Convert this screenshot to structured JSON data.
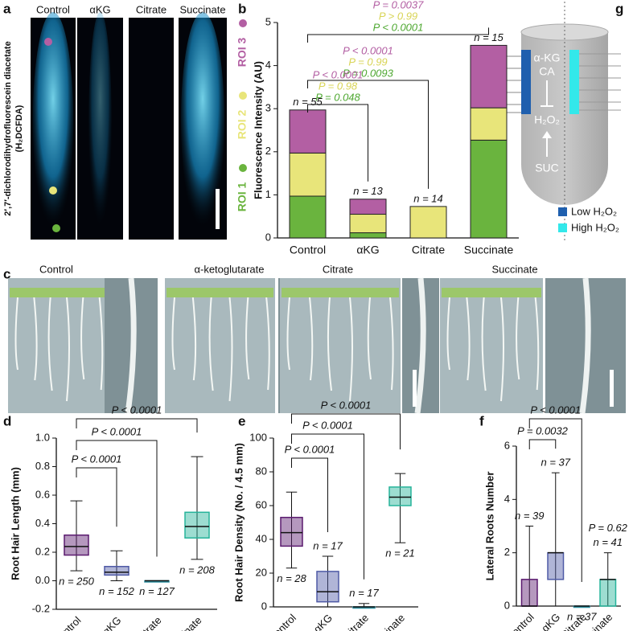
{
  "panel_letters": [
    "a",
    "b",
    "g",
    "c",
    "d",
    "e",
    "f"
  ],
  "panel_a": {
    "labels": [
      "Control",
      "αKG",
      "Citrate",
      "Succinate"
    ],
    "ylabel": "2′,7′-dichlorodihydrofluorescein diacetate",
    "ylabel2": "(H₂DCFDA)"
  },
  "panel_c": {
    "labels": [
      "Control",
      "α-ketoglutarate",
      "Citrate",
      "Succinate"
    ]
  },
  "panel_g": {
    "texts": [
      "α-KG",
      "CA",
      "H₂O₂",
      "SUC"
    ],
    "legend": [
      {
        "label": "Low H₂O₂",
        "color": "#1f5fae"
      },
      {
        "label": "High H₂O₂",
        "color": "#33e8ea"
      }
    ]
  },
  "chart_data": [
    {
      "type": "stacked_bar",
      "ylabel": "Fluorescence Intensity (AU)",
      "categories": [
        "Control",
        "αKG",
        "Citrate",
        "Succinate"
      ],
      "series": [
        {
          "name": "ROI 1",
          "color": "#6ab43e",
          "values": [
            0.97,
            0.12,
            0,
            2.27
          ]
        },
        {
          "name": "ROI 2",
          "color": "#e8e57a",
          "values": [
            1.0,
            0.43,
            0.73,
            0.75
          ]
        },
        {
          "name": "ROI 3",
          "color": "#b35fa3",
          "values": [
            1.0,
            0.35,
            0,
            1.45
          ]
        }
      ],
      "n_labels": [
        "n = 55",
        "n = 13",
        "n = 14",
        "n = 15"
      ],
      "ylim": [
        0,
        5
      ],
      "yticks": [
        0,
        1,
        2,
        3,
        4,
        5
      ],
      "annotations": [
        {
          "lines": [
            {
              "text": "P = 0.0037",
              "color": "#b35fa3"
            },
            {
              "text": "P > 0.99",
              "color": "#d8d455"
            },
            {
              "text": "P < 0.0001",
              "color": "#4fa832"
            }
          ]
        },
        {
          "lines": [
            {
              "text": "P < 0.0001",
              "color": "#b35fa3"
            },
            {
              "text": "P = 0.99",
              "color": "#d8d455"
            },
            {
              "text": "P = 0.0093",
              "color": "#4fa832"
            }
          ]
        },
        {
          "lines": [
            {
              "text": "P < 0.0001",
              "color": "#b35fa3"
            },
            {
              "text": "P = 0.98",
              "color": "#d8d455"
            },
            {
              "text": "P = 0.048",
              "color": "#4fa832"
            }
          ]
        }
      ]
    },
    {
      "type": "box",
      "ylabel": "Root Hair Length (mm)",
      "categories": [
        "Control",
        "αKG",
        "Citrate",
        "Succinate"
      ],
      "colors": [
        "#5a1a6e",
        "#4f5aa6",
        "#2e8fa0",
        "#26b39a"
      ],
      "boxes": [
        {
          "min": 0.07,
          "q1": 0.18,
          "median": 0.24,
          "q3": 0.32,
          "max": 0.56
        },
        {
          "min": 0.0,
          "q1": 0.04,
          "median": 0.06,
          "q3": 0.1,
          "max": 0.21
        },
        {
          "min": 0,
          "q1": 0,
          "median": 0,
          "q3": 0,
          "max": 0
        },
        {
          "min": 0.15,
          "q1": 0.3,
          "median": 0.38,
          "q3": 0.48,
          "max": 0.87
        }
      ],
      "n_labels": [
        "n = 250",
        "n = 152",
        "n = 127",
        "n = 208"
      ],
      "ylim": [
        -0.2,
        1.0
      ],
      "yticks": [
        -0.2,
        {
          "value": 0,
          "label": "0.0"
        },
        0.2,
        0.4,
        0.6,
        0.8,
        {
          "value": 1.0,
          "label": "1.0"
        }
      ],
      "annotations": [
        "P < 0.0001",
        "P < 0.0001",
        "P < 0.0001"
      ]
    },
    {
      "type": "box",
      "ylabel": "Root Hair Density (No. / 4.5 mm)",
      "categories": [
        "Control",
        "αKG",
        "Citrate",
        "Succinate"
      ],
      "colors": [
        "#5a1a6e",
        "#4f5aa6",
        "#2e8fa0",
        "#26b39a"
      ],
      "boxes": [
        {
          "min": 23,
          "q1": 36,
          "median": 44,
          "q3": 53,
          "max": 68
        },
        {
          "min": 0,
          "q1": 3,
          "median": 9,
          "q3": 21,
          "max": 30
        },
        {
          "min": 0,
          "q1": 0,
          "median": 0,
          "q3": 0,
          "max": 2
        },
        {
          "min": 38,
          "q1": 60,
          "median": 65,
          "q3": 71,
          "max": 79
        }
      ],
      "n_labels": [
        "n = 28",
        "n = 17",
        "n = 17",
        "n = 21"
      ],
      "ylim": [
        0,
        100
      ],
      "yticks": [
        0,
        20,
        40,
        60,
        80,
        100
      ],
      "annotations": [
        "P < 0.0001",
        "P < 0.0001",
        "P < 0.0001"
      ]
    },
    {
      "type": "box",
      "ylabel": "Lateral Roots Number",
      "categories": [
        "Control",
        "αKG",
        "Citrate",
        "Succinate"
      ],
      "colors": [
        "#5a1a6e",
        "#4f5aa6",
        "#2e8fa0",
        "#26b39a"
      ],
      "boxes": [
        {
          "min": 0,
          "q1": 0,
          "median": 0,
          "q3": 1,
          "max": 3
        },
        {
          "min": 0,
          "q1": 1,
          "median": 2,
          "q3": 2,
          "max": 5
        },
        {
          "min": 0,
          "q1": 0,
          "median": 0,
          "q3": 0,
          "max": 0
        },
        {
          "min": 0,
          "q1": 0,
          "median": 1,
          "q3": 1,
          "max": 2
        }
      ],
      "n_labels": [
        "n = 39",
        "n = 37",
        "n = 37",
        "n = 41"
      ],
      "ylim": [
        0,
        6
      ],
      "yticks": [
        0,
        2,
        4,
        6
      ],
      "annotations": [
        "P < 0.0001",
        "P = 0.0032",
        "P = 0.62"
      ]
    }
  ]
}
